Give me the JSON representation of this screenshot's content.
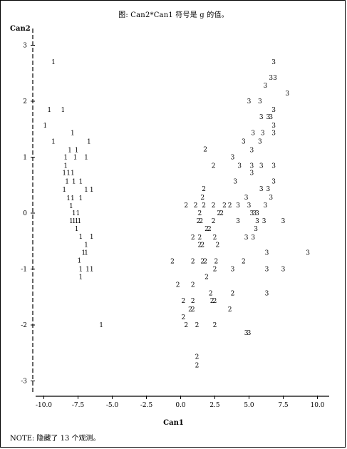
{
  "title": "图: Can2*Can1   符号是 g 的值。",
  "note": "NOTE: 隐藏了 13 个观测。",
  "chart_data": {
    "type": "scatter",
    "title": "图: Can2*Can1   符号是 g 的值。",
    "xlabel": "Can1",
    "ylabel": "Can2",
    "xlim": [
      -11,
      10.5
    ],
    "ylim": [
      -3.2,
      3.2
    ],
    "xticks": [
      -10.0,
      -7.5,
      -5.0,
      -2.5,
      0.0,
      2.5,
      5.0,
      7.5,
      10.0
    ],
    "xtick_labels": [
      "-10.0",
      "-7.5",
      "-5.0",
      "-2.5",
      "0.0",
      "2.5",
      "5.0",
      "7.5",
      "10.0"
    ],
    "yticks": [
      3,
      2,
      1,
      0,
      -1,
      -2,
      -3
    ],
    "ytick_labels": [
      "3",
      "2",
      "1",
      "0",
      "-1",
      "-2",
      "-3"
    ],
    "grid": false,
    "series": [
      {
        "name": "1",
        "points": [
          [
            -9.3,
            2.7
          ],
          [
            -9.6,
            1.85
          ],
          [
            -8.6,
            1.85
          ],
          [
            -9.9,
            1.57
          ],
          [
            -7.9,
            1.43
          ],
          [
            -9.3,
            1.28
          ],
          [
            -6.7,
            1.28
          ],
          [
            -8.1,
            1.13
          ],
          [
            -7.6,
            1.13
          ],
          [
            -8.4,
            1.0
          ],
          [
            -7.7,
            1.0
          ],
          [
            -6.9,
            1.0
          ],
          [
            -8.4,
            0.85
          ],
          [
            -8.5,
            0.72
          ],
          [
            -8.2,
            0.72
          ],
          [
            -7.9,
            0.72
          ],
          [
            -8.3,
            0.57
          ],
          [
            -7.8,
            0.57
          ],
          [
            -7.3,
            0.57
          ],
          [
            -8.5,
            0.42
          ],
          [
            -6.9,
            0.42
          ],
          [
            -6.5,
            0.42
          ],
          [
            -8.2,
            0.27
          ],
          [
            -7.9,
            0.27
          ],
          [
            -7.3,
            0.27
          ],
          [
            -8.0,
            0.13
          ],
          [
            -7.8,
            0.0
          ],
          [
            -7.5,
            0.0
          ],
          [
            -8.0,
            -0.14
          ],
          [
            -7.8,
            -0.14
          ],
          [
            -7.6,
            -0.14
          ],
          [
            -7.4,
            -0.14
          ],
          [
            -7.6,
            -0.28
          ],
          [
            -7.3,
            -0.42
          ],
          [
            -6.5,
            -0.42
          ],
          [
            -6.9,
            -0.57
          ],
          [
            -7.1,
            -0.71
          ],
          [
            -6.9,
            -0.71
          ],
          [
            -7.4,
            -0.85
          ],
          [
            -7.3,
            -1.0
          ],
          [
            -6.8,
            -1.0
          ],
          [
            -6.5,
            -1.0
          ],
          [
            -7.3,
            -1.14
          ],
          [
            -5.8,
            -2.0
          ]
        ]
      },
      {
        "name": "2",
        "points": [
          [
            1.8,
            1.14
          ],
          [
            2.4,
            0.85
          ],
          [
            1.7,
            0.43
          ],
          [
            1.6,
            0.28
          ],
          [
            0.4,
            0.14
          ],
          [
            1.1,
            0.14
          ],
          [
            1.7,
            0.14
          ],
          [
            2.4,
            0.14
          ],
          [
            3.2,
            0.14
          ],
          [
            3.6,
            0.14
          ],
          [
            1.4,
            0.0
          ],
          [
            2.8,
            0.0
          ],
          [
            3.0,
            0.0
          ],
          [
            1.3,
            -0.14
          ],
          [
            1.5,
            -0.14
          ],
          [
            2.4,
            -0.14
          ],
          [
            1.9,
            -0.28
          ],
          [
            2.1,
            -0.28
          ],
          [
            0.9,
            -0.43
          ],
          [
            1.4,
            -0.43
          ],
          [
            2.5,
            -0.43
          ],
          [
            1.4,
            -0.57
          ],
          [
            1.6,
            -0.57
          ],
          [
            2.7,
            -0.57
          ],
          [
            -0.6,
            -0.86
          ],
          [
            0.9,
            -0.86
          ],
          [
            1.6,
            -0.86
          ],
          [
            1.8,
            -0.86
          ],
          [
            2.6,
            -0.86
          ],
          [
            4.6,
            -0.86
          ],
          [
            2.5,
            -1.0
          ],
          [
            1.9,
            -1.14
          ],
          [
            -0.2,
            -1.28
          ],
          [
            0.9,
            -1.28
          ],
          [
            2.2,
            -1.43
          ],
          [
            3.8,
            -1.43
          ],
          [
            0.2,
            -1.57
          ],
          [
            0.9,
            -1.57
          ],
          [
            2.3,
            -1.57
          ],
          [
            2.5,
            -1.57
          ],
          [
            0.7,
            -1.72
          ],
          [
            0.9,
            -1.72
          ],
          [
            3.6,
            -1.72
          ],
          [
            0.2,
            -1.86
          ],
          [
            0.4,
            -2.0
          ],
          [
            1.2,
            -2.0
          ],
          [
            2.5,
            -2.0
          ],
          [
            1.2,
            -2.57
          ],
          [
            1.2,
            -2.72
          ]
        ]
      },
      {
        "name": "3",
        "points": [
          [
            6.8,
            2.7
          ],
          [
            6.6,
            2.42
          ],
          [
            6.9,
            2.42
          ],
          [
            6.2,
            2.28
          ],
          [
            7.8,
            2.14
          ],
          [
            5.0,
            2.0
          ],
          [
            5.8,
            2.0
          ],
          [
            6.8,
            1.85
          ],
          [
            5.9,
            1.72
          ],
          [
            6.4,
            1.72
          ],
          [
            6.6,
            1.72
          ],
          [
            6.8,
            1.57
          ],
          [
            5.3,
            1.43
          ],
          [
            6.0,
            1.43
          ],
          [
            6.8,
            1.43
          ],
          [
            4.6,
            1.28
          ],
          [
            5.8,
            1.28
          ],
          [
            5.2,
            1.13
          ],
          [
            3.8,
            1.0
          ],
          [
            4.3,
            0.85
          ],
          [
            5.2,
            0.85
          ],
          [
            5.9,
            0.85
          ],
          [
            6.8,
            0.85
          ],
          [
            5.2,
            0.72
          ],
          [
            4.0,
            0.57
          ],
          [
            6.8,
            0.57
          ],
          [
            5.9,
            0.43
          ],
          [
            6.4,
            0.43
          ],
          [
            4.8,
            0.28
          ],
          [
            6.6,
            0.28
          ],
          [
            4.2,
            0.14
          ],
          [
            5.0,
            0.14
          ],
          [
            6.2,
            0.14
          ],
          [
            5.2,
            0.0
          ],
          [
            5.4,
            0.0
          ],
          [
            5.6,
            0.0
          ],
          [
            4.2,
            -0.14
          ],
          [
            5.6,
            -0.14
          ],
          [
            6.1,
            -0.14
          ],
          [
            7.5,
            -0.14
          ],
          [
            5.5,
            -0.28
          ],
          [
            4.8,
            -0.43
          ],
          [
            5.3,
            -0.43
          ],
          [
            6.3,
            -0.71
          ],
          [
            9.3,
            -0.71
          ],
          [
            3.8,
            -1.0
          ],
          [
            6.3,
            -1.0
          ],
          [
            7.5,
            -1.0
          ],
          [
            6.3,
            -1.43
          ],
          [
            4.8,
            -2.14
          ],
          [
            5.0,
            -2.14
          ]
        ]
      }
    ]
  }
}
